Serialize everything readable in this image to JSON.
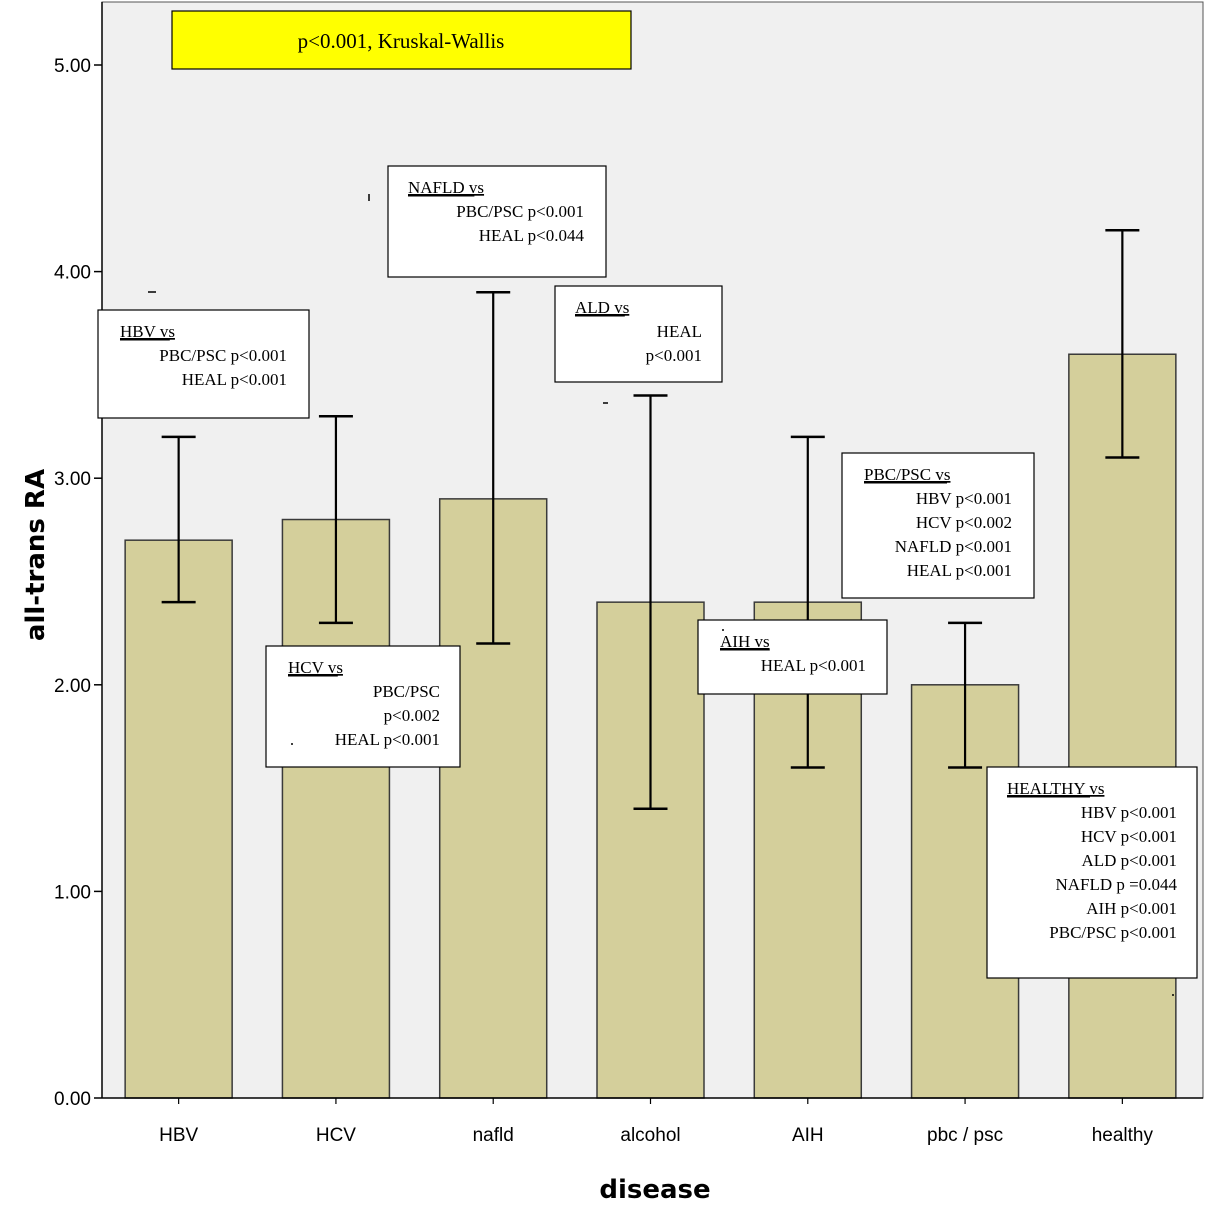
{
  "chart_data": {
    "type": "bar",
    "xlabel": "disease",
    "ylabel": "all-trans RA",
    "ylim": [
      0,
      5.2
    ],
    "y_ticks": [
      "0.00",
      "1.00",
      "2.00",
      "3.00",
      "4.00",
      "5.00"
    ],
    "grid": false,
    "categories": [
      "HBV",
      "HCV",
      "nafld",
      "alcohol",
      "AIH",
      "pbc / psc",
      "healthy"
    ],
    "values": [
      2.7,
      2.8,
      2.9,
      2.4,
      2.4,
      2.0,
      3.6
    ],
    "error_low": [
      2.4,
      2.3,
      2.2,
      1.4,
      1.6,
      1.6,
      3.1
    ],
    "error_high": [
      3.2,
      3.3,
      3.9,
      3.4,
      3.2,
      2.3,
      4.2
    ],
    "colors": {
      "bar_fill": "#d4cf9b",
      "bar_stroke": "#3a3a3a",
      "plot_background": "#f0f0f0",
      "title_box": "#ffff00"
    },
    "test_label": "p<0.001, Kruskal-Wallis",
    "annotations": [
      {
        "id": "hbv",
        "title": "HBV vs",
        "lines": [
          "PBC/PSC p<0.001",
          "HEAL p<0.001"
        ]
      },
      {
        "id": "hcv",
        "title": "HCV vs",
        "lines": [
          "PBC/PSC",
          "p<0.002",
          "HEAL p<0.001"
        ]
      },
      {
        "id": "nafld",
        "title": "NAFLD vs",
        "lines": [
          "PBC/PSC p<0.001",
          "HEAL p<0.044"
        ]
      },
      {
        "id": "ald",
        "title": "ALD vs",
        "lines": [
          "HEAL",
          "p<0.001"
        ]
      },
      {
        "id": "aih",
        "title": "AIH vs",
        "lines": [
          "HEAL p<0.001"
        ]
      },
      {
        "id": "pbc",
        "title": "PBC/PSC vs",
        "lines": [
          "HBV p<0.001",
          "HCV p<0.002",
          "NAFLD p<0.001",
          "HEAL p<0.001"
        ]
      },
      {
        "id": "healthy",
        "title": "HEALTHY vs",
        "lines": [
          "HBV p<0.001",
          "HCV p<0.001",
          "ALD p<0.001",
          "NAFLD p =0.044",
          "AIH p<0.001",
          "PBC/PSC p<0.001"
        ]
      }
    ]
  }
}
